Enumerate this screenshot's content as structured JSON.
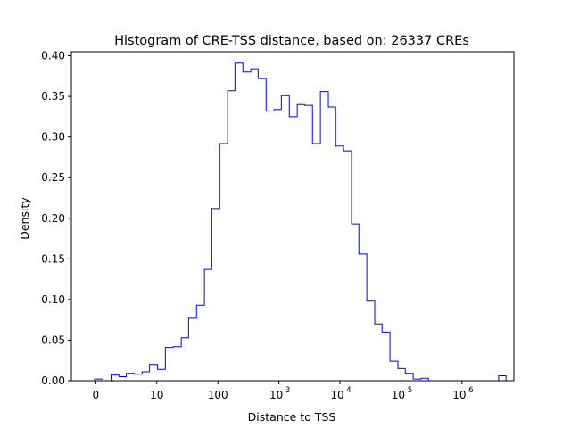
{
  "chart_data": {
    "type": "histogram-step",
    "title": "Histogram of CRE-TSS distance, based on: 26337 CREs",
    "xlabel": "Distance to TSS",
    "ylabel": "Density",
    "color": "#0000ff",
    "ylim": [
      0,
      0.405
    ],
    "xlim": [
      -0.4,
      6.85
    ],
    "x_scale": "log10(distance + 1)",
    "x_ticks": [
      {
        "value": 0,
        "label": "0"
      },
      {
        "value": 1,
        "label": "10"
      },
      {
        "value": 2,
        "label": "100"
      },
      {
        "value": 3,
        "label": "10",
        "sup": "3"
      },
      {
        "value": 4,
        "label": "10",
        "sup": "4"
      },
      {
        "value": 5,
        "label": "10",
        "sup": "5"
      },
      {
        "value": 6,
        "label": "10",
        "sup": "6"
      }
    ],
    "y_ticks": [
      {
        "value": 0,
        "label": "0.00"
      },
      {
        "value": 0.05,
        "label": "0.05"
      },
      {
        "value": 0.1,
        "label": "0.10"
      },
      {
        "value": 0.15,
        "label": "0.15"
      },
      {
        "value": 0.2,
        "label": "0.20"
      },
      {
        "value": 0.25,
        "label": "0.25"
      },
      {
        "value": 0.3,
        "label": "0.30"
      },
      {
        "value": 0.35,
        "label": "0.35"
      },
      {
        "value": 0.4,
        "label": "0.40"
      }
    ],
    "bin_edges": [
      -0.02,
      0.12,
      0.25,
      0.38,
      0.5,
      0.63,
      0.76,
      0.88,
      1.01,
      1.14,
      1.27,
      1.4,
      1.52,
      1.65,
      1.78,
      1.9,
      2.03,
      2.16,
      2.28,
      2.41,
      2.54,
      2.66,
      2.79,
      2.92,
      3.04,
      3.17,
      3.3,
      3.42,
      3.55,
      3.68,
      3.81,
      3.93,
      4.06,
      4.19,
      4.31,
      4.44,
      4.57,
      4.69,
      4.82,
      4.95,
      5.07,
      5.2,
      5.33,
      5.45,
      5.58,
      5.71,
      5.84,
      5.96,
      6.09,
      6.22,
      6.35,
      6.47,
      6.6,
      6.72
    ],
    "densities": [
      0.002,
      0.0,
      0.007,
      0.005,
      0.009,
      0.008,
      0.011,
      0.02,
      0.014,
      0.041,
      0.042,
      0.053,
      0.077,
      0.093,
      0.137,
      0.212,
      0.292,
      0.357,
      0.391,
      0.38,
      0.384,
      0.372,
      0.332,
      0.334,
      0.351,
      0.325,
      0.34,
      0.339,
      0.292,
      0.356,
      0.337,
      0.289,
      0.283,
      0.193,
      0.156,
      0.098,
      0.07,
      0.06,
      0.024,
      0.015,
      0.009,
      0.002,
      0.003,
      0.0,
      0.0,
      0.0,
      0.0,
      0.0,
      0.0,
      0.0,
      0.0,
      0.0,
      0.006
    ]
  }
}
